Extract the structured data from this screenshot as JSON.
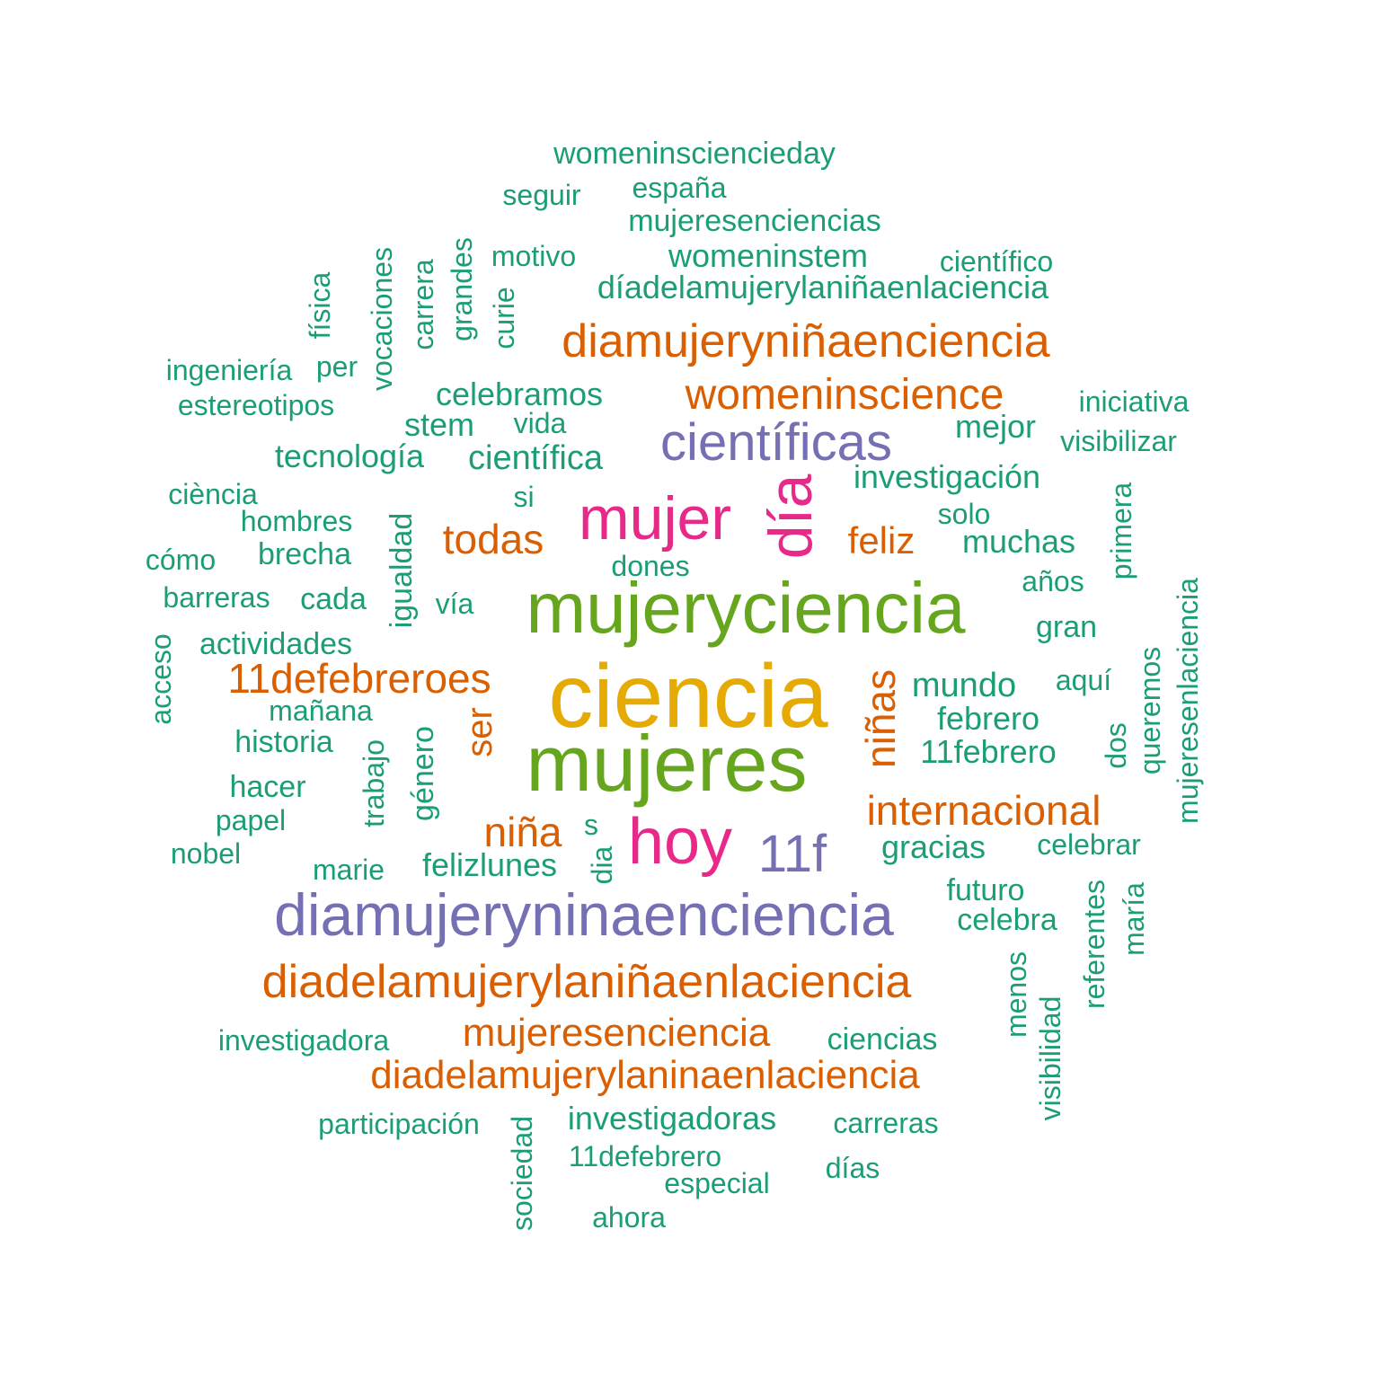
{
  "colors": {
    "teal": "#1b9e77",
    "orange": "#d95f02",
    "purple": "#7570b3",
    "magenta": "#e7298a",
    "green": "#66a61e",
    "gold": "#e6ab02"
  },
  "words": [
    {
      "text": "ciencia",
      "color": "gold",
      "vertical": false
    },
    {
      "text": "mujeres",
      "color": "green",
      "vertical": false
    },
    {
      "text": "mujeryciencia",
      "color": "green",
      "vertical": false
    },
    {
      "text": "hoy",
      "color": "magenta",
      "vertical": false
    },
    {
      "text": "mujer",
      "color": "magenta",
      "vertical": false
    },
    {
      "text": "día",
      "color": "magenta",
      "vertical": true
    },
    {
      "text": "científicas",
      "color": "purple",
      "vertical": false
    },
    {
      "text": "diamujeryninaenciencia",
      "color": "purple",
      "vertical": false
    },
    {
      "text": "11f",
      "color": "purple",
      "vertical": false
    },
    {
      "text": "diamujeryniñaenciencia",
      "color": "orange",
      "vertical": false
    },
    {
      "text": "womeninscience",
      "color": "orange",
      "vertical": false
    },
    {
      "text": "diadelamujerylaniñaenlaciencia",
      "color": "orange",
      "vertical": false
    },
    {
      "text": "diadelamujerylaninaenlaciencia",
      "color": "orange",
      "vertical": false
    },
    {
      "text": "mujeresenciencia",
      "color": "orange",
      "vertical": false
    },
    {
      "text": "11defebreroes",
      "color": "orange",
      "vertical": false
    },
    {
      "text": "internacional",
      "color": "orange",
      "vertical": false
    },
    {
      "text": "niñas",
      "color": "orange",
      "vertical": true
    },
    {
      "text": "niña",
      "color": "orange",
      "vertical": false
    },
    {
      "text": "todas",
      "color": "orange",
      "vertical": false
    },
    {
      "text": "feliz",
      "color": "orange",
      "vertical": false
    },
    {
      "text": "ser",
      "color": "orange",
      "vertical": true
    },
    {
      "text": "womeninsciencieday",
      "color": "teal",
      "vertical": false
    },
    {
      "text": "seguir",
      "color": "teal",
      "vertical": false
    },
    {
      "text": "españa",
      "color": "teal",
      "vertical": false
    },
    {
      "text": "mujeresenciencias",
      "color": "teal",
      "vertical": false
    },
    {
      "text": "motivo",
      "color": "teal",
      "vertical": false
    },
    {
      "text": "womeninstem",
      "color": "teal",
      "vertical": false
    },
    {
      "text": "científico",
      "color": "teal",
      "vertical": false
    },
    {
      "text": "díadelamujerylaniñaenlaciencia",
      "color": "teal",
      "vertical": false
    },
    {
      "text": "física",
      "color": "teal",
      "vertical": true
    },
    {
      "text": "vocaciones",
      "color": "teal",
      "vertical": true
    },
    {
      "text": "carrera",
      "color": "teal",
      "vertical": true
    },
    {
      "text": "grandes",
      "color": "teal",
      "vertical": true
    },
    {
      "text": "curie",
      "color": "teal",
      "vertical": true
    },
    {
      "text": "ingeniería",
      "color": "teal",
      "vertical": false
    },
    {
      "text": "per",
      "color": "teal",
      "vertical": false
    },
    {
      "text": "estereotipos",
      "color": "teal",
      "vertical": false
    },
    {
      "text": "celebramos",
      "color": "teal",
      "vertical": false
    },
    {
      "text": "stem",
      "color": "teal",
      "vertical": false
    },
    {
      "text": "vida",
      "color": "teal",
      "vertical": false
    },
    {
      "text": "iniciativa",
      "color": "teal",
      "vertical": false
    },
    {
      "text": "mejor",
      "color": "teal",
      "vertical": false
    },
    {
      "text": "visibilizar",
      "color": "teal",
      "vertical": false
    },
    {
      "text": "tecnología",
      "color": "teal",
      "vertical": false
    },
    {
      "text": "científica",
      "color": "teal",
      "vertical": false
    },
    {
      "text": "investigación",
      "color": "teal",
      "vertical": false
    },
    {
      "text": "ciència",
      "color": "teal",
      "vertical": false
    },
    {
      "text": "si",
      "color": "teal",
      "vertical": false
    },
    {
      "text": "primera",
      "color": "teal",
      "vertical": true
    },
    {
      "text": "hombres",
      "color": "teal",
      "vertical": false
    },
    {
      "text": "igualdad",
      "color": "teal",
      "vertical": true
    },
    {
      "text": "solo",
      "color": "teal",
      "vertical": false
    },
    {
      "text": "cómo",
      "color": "teal",
      "vertical": false
    },
    {
      "text": "brecha",
      "color": "teal",
      "vertical": false
    },
    {
      "text": "muchas",
      "color": "teal",
      "vertical": false
    },
    {
      "text": "dones",
      "color": "teal",
      "vertical": false
    },
    {
      "text": "mujeresenlaciencia",
      "color": "teal",
      "vertical": true
    },
    {
      "text": "barreras",
      "color": "teal",
      "vertical": false
    },
    {
      "text": "cada",
      "color": "teal",
      "vertical": false
    },
    {
      "text": "vía",
      "color": "teal",
      "vertical": false
    },
    {
      "text": "años",
      "color": "teal",
      "vertical": false
    },
    {
      "text": "acceso",
      "color": "teal",
      "vertical": true
    },
    {
      "text": "actividades",
      "color": "teal",
      "vertical": false
    },
    {
      "text": "gran",
      "color": "teal",
      "vertical": false
    },
    {
      "text": "queremos",
      "color": "teal",
      "vertical": true
    },
    {
      "text": "mundo",
      "color": "teal",
      "vertical": false
    },
    {
      "text": "aquí",
      "color": "teal",
      "vertical": false
    },
    {
      "text": "mañana",
      "color": "teal",
      "vertical": false
    },
    {
      "text": "febrero",
      "color": "teal",
      "vertical": false
    },
    {
      "text": "historia",
      "color": "teal",
      "vertical": false
    },
    {
      "text": "trabajo",
      "color": "teal",
      "vertical": true
    },
    {
      "text": "género",
      "color": "teal",
      "vertical": true
    },
    {
      "text": "11febrero",
      "color": "teal",
      "vertical": false
    },
    {
      "text": "dos",
      "color": "teal",
      "vertical": true
    },
    {
      "text": "hacer",
      "color": "teal",
      "vertical": false
    },
    {
      "text": "papel",
      "color": "teal",
      "vertical": false
    },
    {
      "text": "s",
      "color": "teal",
      "vertical": false
    },
    {
      "text": "nobel",
      "color": "teal",
      "vertical": false
    },
    {
      "text": "gracias",
      "color": "teal",
      "vertical": false
    },
    {
      "text": "celebrar",
      "color": "teal",
      "vertical": false
    },
    {
      "text": "dia",
      "color": "teal",
      "vertical": true
    },
    {
      "text": "marie",
      "color": "teal",
      "vertical": false
    },
    {
      "text": "felizlunes",
      "color": "teal",
      "vertical": false
    },
    {
      "text": "futuro",
      "color": "teal",
      "vertical": false
    },
    {
      "text": "referentes",
      "color": "teal",
      "vertical": true
    },
    {
      "text": "maría",
      "color": "teal",
      "vertical": true
    },
    {
      "text": "celebra",
      "color": "teal",
      "vertical": false
    },
    {
      "text": "menos",
      "color": "teal",
      "vertical": true
    },
    {
      "text": "visibilidad",
      "color": "teal",
      "vertical": true
    },
    {
      "text": "investigadora",
      "color": "teal",
      "vertical": false
    },
    {
      "text": "ciencias",
      "color": "teal",
      "vertical": false
    },
    {
      "text": "participación",
      "color": "teal",
      "vertical": false
    },
    {
      "text": "sociedad",
      "color": "teal",
      "vertical": true
    },
    {
      "text": "investigadoras",
      "color": "teal",
      "vertical": false
    },
    {
      "text": "carreras",
      "color": "teal",
      "vertical": false
    },
    {
      "text": "11defebrero",
      "color": "teal",
      "vertical": false
    },
    {
      "text": "días",
      "color": "teal",
      "vertical": false
    },
    {
      "text": "especial",
      "color": "teal",
      "vertical": false
    },
    {
      "text": "ahora",
      "color": "teal",
      "vertical": false
    }
  ]
}
